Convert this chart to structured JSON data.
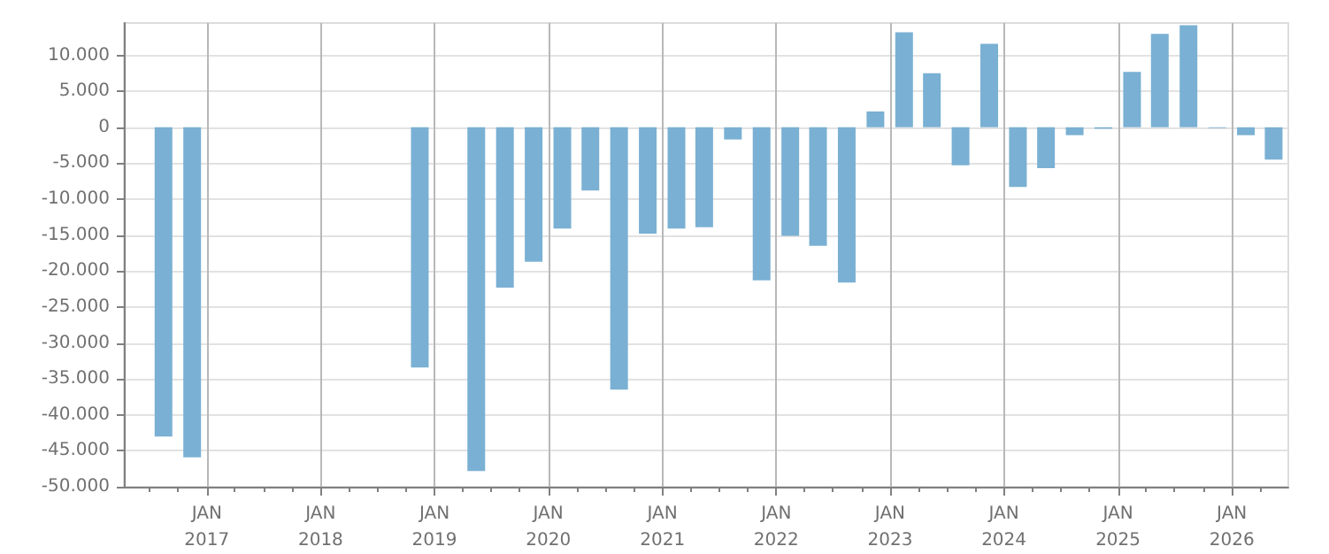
{
  "chart_data": {
    "type": "bar",
    "color": "#7ab0d3",
    "x": [
      "2016-08-15",
      "2016-11-15",
      "2018-11-15",
      "2019-05-15",
      "2019-08-15",
      "2019-11-15",
      "2020-02-15",
      "2020-05-15",
      "2020-08-15",
      "2020-11-15",
      "2021-02-15",
      "2021-05-15",
      "2021-08-15",
      "2021-11-15",
      "2022-02-15",
      "2022-05-15",
      "2022-08-15",
      "2022-11-15",
      "2023-02-15",
      "2023-05-15",
      "2023-08-15",
      "2023-11-15",
      "2024-02-15",
      "2024-05-15",
      "2024-08-15",
      "2024-11-15",
      "2025-02-15",
      "2025-05-15",
      "2025-08-15",
      "2025-11-15",
      "2026-02-15",
      "2026-05-15"
    ],
    "values": [
      -43000,
      -45900,
      -33400,
      -47800,
      -22300,
      -18700,
      -14100,
      -8800,
      -36500,
      -14800,
      -14100,
      -13900,
      -1700,
      -21300,
      -15100,
      -16500,
      -21600,
      2200,
      13200,
      7500,
      -5300,
      11600,
      -8300,
      -5700,
      -1100,
      -200,
      7700,
      13000,
      14200,
      -100,
      -1100,
      -4500
    ],
    "xlim": [
      "2016-04-10",
      "2026-07-01"
    ],
    "xticks": [
      {
        "value": "2016-07-01",
        "label": null
      },
      {
        "value": "2016-10-01",
        "label": null
      },
      {
        "value": "2017-01-01",
        "label": "JAN\n2017"
      },
      {
        "value": "2017-04-01",
        "label": null
      },
      {
        "value": "2017-07-01",
        "label": null
      },
      {
        "value": "2017-10-01",
        "label": null
      },
      {
        "value": "2018-01-01",
        "label": "JAN\n2018"
      },
      {
        "value": "2018-04-01",
        "label": null
      },
      {
        "value": "2018-07-01",
        "label": null
      },
      {
        "value": "2018-10-01",
        "label": null
      },
      {
        "value": "2019-01-01",
        "label": "JAN\n2019"
      },
      {
        "value": "2019-04-01",
        "label": null
      },
      {
        "value": "2019-07-01",
        "label": null
      },
      {
        "value": "2019-10-01",
        "label": null
      },
      {
        "value": "2020-01-01",
        "label": "JAN\n2020"
      },
      {
        "value": "2020-04-01",
        "label": null
      },
      {
        "value": "2020-07-01",
        "label": null
      },
      {
        "value": "2020-10-01",
        "label": null
      },
      {
        "value": "2021-01-01",
        "label": "JAN\n2021"
      },
      {
        "value": "2021-04-01",
        "label": null
      },
      {
        "value": "2021-07-01",
        "label": null
      },
      {
        "value": "2021-10-01",
        "label": null
      },
      {
        "value": "2022-01-01",
        "label": "JAN\n2022"
      },
      {
        "value": "2022-04-01",
        "label": null
      },
      {
        "value": "2022-07-01",
        "label": null
      },
      {
        "value": "2022-10-01",
        "label": null
      },
      {
        "value": "2023-01-01",
        "label": "JAN\n2023"
      },
      {
        "value": "2023-04-01",
        "label": null
      },
      {
        "value": "2023-07-01",
        "label": null
      },
      {
        "value": "2023-10-01",
        "label": null
      },
      {
        "value": "2024-01-01",
        "label": "JAN\n2024"
      },
      {
        "value": "2024-04-01",
        "label": null
      },
      {
        "value": "2024-07-01",
        "label": null
      },
      {
        "value": "2024-10-01",
        "label": null
      },
      {
        "value": "2025-01-01",
        "label": "JAN\n2025"
      },
      {
        "value": "2025-04-01",
        "label": null
      },
      {
        "value": "2025-07-01",
        "label": null
      },
      {
        "value": "2025-10-01",
        "label": null
      },
      {
        "value": "2026-01-01",
        "label": "JAN\n2026"
      },
      {
        "value": "2026-04-01",
        "label": null
      }
    ],
    "ylim": [
      -50000,
      14500
    ],
    "yticks": [
      {
        "value": -50000,
        "label": "-50.000"
      },
      {
        "value": -45000,
        "label": "-45.000"
      },
      {
        "value": -40000,
        "label": "-40.000"
      },
      {
        "value": -35000,
        "label": "-35.000"
      },
      {
        "value": -30000,
        "label": "-30.000"
      },
      {
        "value": -25000,
        "label": "-25.000"
      },
      {
        "value": -20000,
        "label": "-20.000"
      },
      {
        "value": -15000,
        "label": "-15.000"
      },
      {
        "value": -10000,
        "label": "-10.000"
      },
      {
        "value": -5000,
        "label": "-5.000"
      },
      {
        "value": 0,
        "label": "0"
      },
      {
        "value": 5000,
        "label": "5.000"
      },
      {
        "value": 10000,
        "label": "10.000"
      }
    ],
    "grid": true
  }
}
